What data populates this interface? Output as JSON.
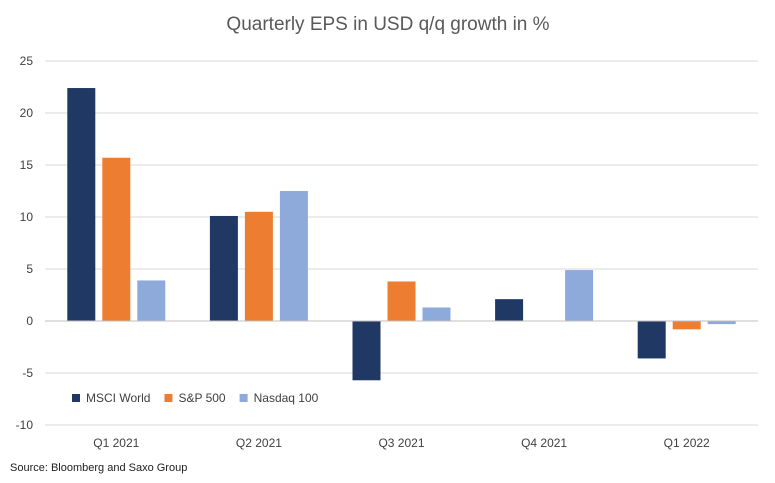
{
  "chart_data": {
    "type": "bar",
    "title": "Quarterly EPS in USD q/q growth in %",
    "xlabel": "",
    "ylabel": "",
    "categories": [
      "Q1 2021",
      "Q2 2021",
      "Q3 2021",
      "Q4 2021",
      "Q1 2022"
    ],
    "ylim": [
      -10,
      25
    ],
    "yticks": [
      -10,
      -5,
      0,
      5,
      10,
      15,
      20,
      25
    ],
    "grid": true,
    "legend_position": "bottom-left inside",
    "series": [
      {
        "name": "MSCI World",
        "color": "#1f3864",
        "values": [
          22.4,
          10.1,
          -5.7,
          2.1,
          -3.6
        ]
      },
      {
        "name": "S&P 500",
        "color": "#ed7d31",
        "values": [
          15.7,
          10.5,
          3.8,
          null,
          -0.8
        ]
      },
      {
        "name": "Nasdaq 100",
        "color": "#8eaadb",
        "values": [
          3.9,
          12.5,
          1.3,
          4.9,
          -0.3
        ]
      }
    ]
  },
  "source": "Source: Bloomberg and Saxo Group"
}
